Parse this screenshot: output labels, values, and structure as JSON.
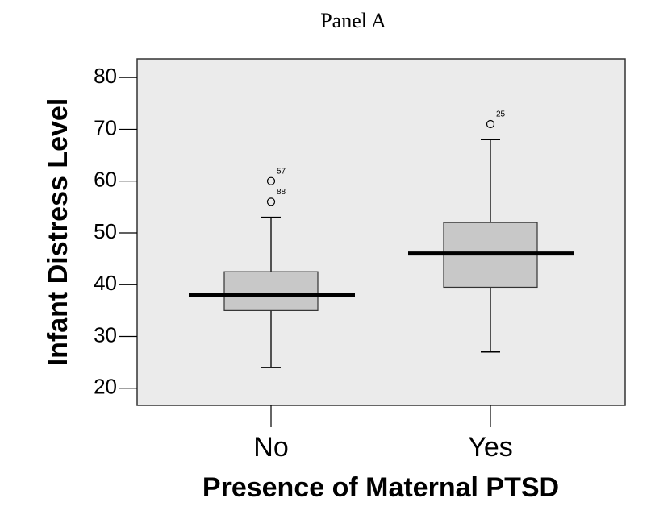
{
  "chart_data": {
    "type": "box",
    "title": "Panel A",
    "x_label": "Presence of Maternal PTSD",
    "y_label": "Infant Distress Level",
    "categories": [
      "No",
      "Yes"
    ],
    "boxes": [
      {
        "whislo": 24,
        "q1": 35,
        "med": 38,
        "q3": 42.5,
        "whishi": 53,
        "fliers": [
          60,
          56
        ],
        "flier_labels": [
          "57",
          "88"
        ]
      },
      {
        "whislo": 27,
        "q1": 39.5,
        "med": 46,
        "q3": 52,
        "whishi": 68,
        "fliers": [
          71
        ],
        "flier_labels": [
          "25"
        ]
      }
    ],
    "ylim": [
      16.7,
      83.6
    ],
    "yticks": [
      20,
      30,
      40,
      50,
      60,
      70,
      80
    ],
    "box_color": "#c8c8c8",
    "background": "#ebebeb"
  }
}
